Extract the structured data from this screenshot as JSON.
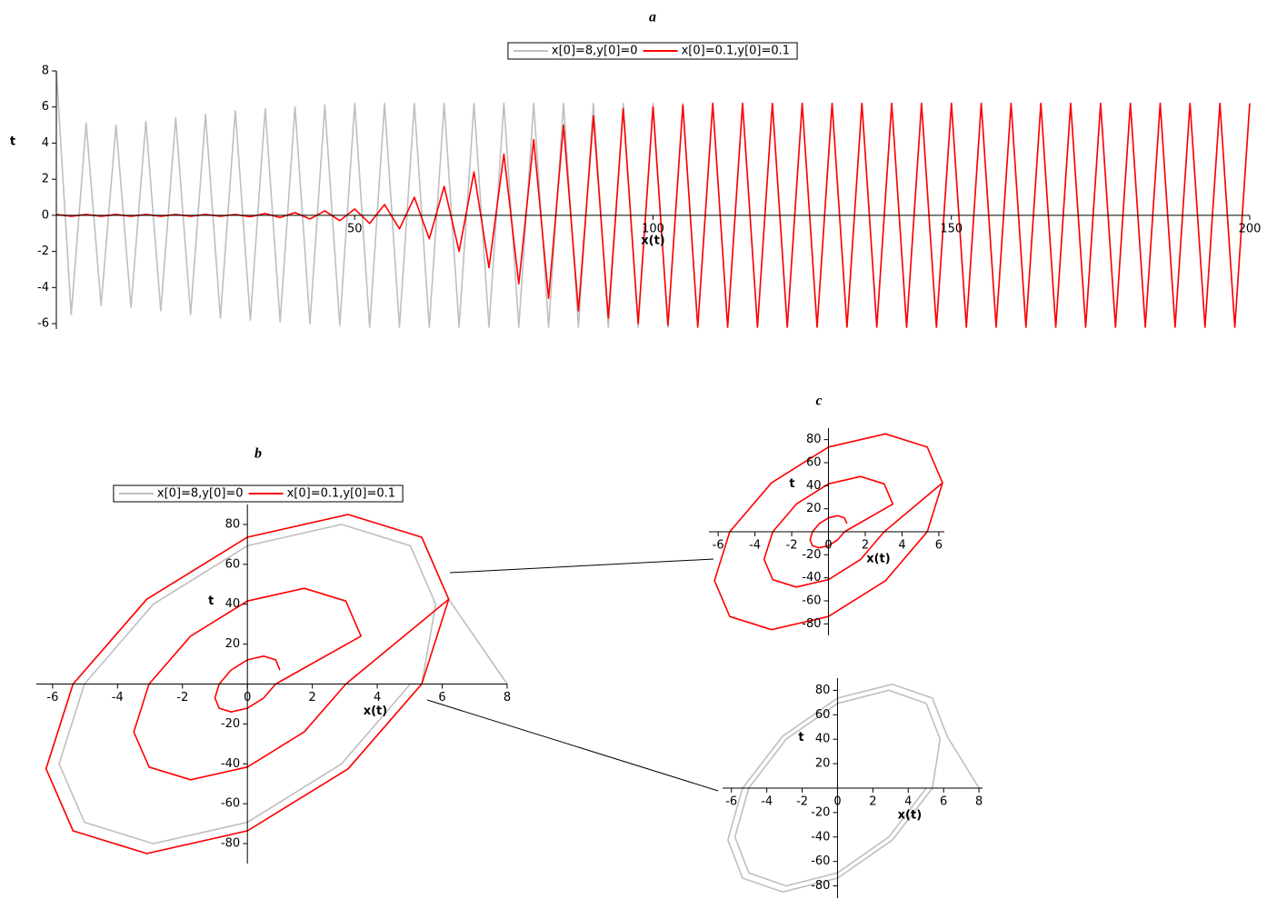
{
  "chart_data": [
    {
      "type": "line",
      "title": "a",
      "x_label": "x(t)",
      "y_label": "t",
      "legend": "top",
      "x": [
        0,
        2.5,
        5,
        7.5,
        10,
        12.5,
        15,
        17.5,
        20,
        22.5,
        25,
        27.5,
        30,
        32.5,
        35,
        37.5,
        40,
        42.5,
        45,
        47.5,
        50,
        52.5,
        55,
        57.5,
        60,
        62.5,
        65,
        67.5,
        70,
        72.5,
        75,
        77.5,
        80,
        82.5,
        85,
        87.5,
        90,
        92.5,
        95,
        97.5,
        100,
        102.5,
        105,
        107.5,
        110,
        112.5,
        115,
        117.5,
        120,
        122.5,
        125,
        127.5,
        130,
        132.5,
        135,
        137.5,
        140,
        142.5,
        145,
        147.5,
        150,
        152.5,
        155,
        157.5,
        160,
        162.5,
        165,
        167.5,
        170,
        172.5,
        175,
        177.5,
        180,
        182.5,
        185,
        187.5,
        190,
        192.5,
        195,
        197.5,
        200
      ],
      "series": [
        {
          "name": "x[0]=8,y[0]=0",
          "color": "#bfbfbf",
          "values": [
            8,
            -5.5,
            5.1,
            -5,
            5,
            -5.1,
            5.2,
            -5.3,
            5.4,
            -5.5,
            5.6,
            -5.7,
            5.8,
            -5.8,
            5.9,
            -5.9,
            6,
            -6,
            6.1,
            -6.1,
            6.2,
            -6.2,
            6.2,
            -6.2,
            6.2,
            -6.2,
            6.2,
            -6.2,
            6.2,
            -6.2,
            6.2,
            -6.2,
            6.2,
            -6.2,
            6.2,
            -6.2,
            6.2,
            -6.2,
            6.2,
            -6.2,
            6.2,
            -6.2,
            6.2,
            -6.2,
            6.2,
            -6.2,
            6.2,
            -6.2,
            6.2,
            -6.2,
            6.2,
            -6.2,
            6.2,
            -6.2,
            6.2,
            -6.2,
            6.2,
            -6.2,
            6.2,
            -6.2,
            6.2,
            -6.2,
            6.2,
            -6.2,
            6.2,
            -6.2,
            6.2,
            -6.2,
            6.2,
            -6.2,
            6.2,
            -6.2,
            6.2,
            -6.2,
            6.2,
            -6.2,
            6.2,
            -6.2,
            6.2,
            -6.2,
            6.2
          ]
        },
        {
          "name": "x[0]=0.1,y[0]=0.1",
          "color": "#ff0000",
          "values": [
            0.05,
            -0.05,
            0.05,
            -0.05,
            0.05,
            -0.05,
            0.05,
            -0.05,
            0.05,
            -0.05,
            0.05,
            -0.05,
            0.05,
            -0.08,
            0.1,
            -0.12,
            0.15,
            -0.2,
            0.25,
            -0.3,
            0.35,
            -0.45,
            0.6,
            -0.75,
            1,
            -1.3,
            1.6,
            -2,
            2.4,
            -2.9,
            3.4,
            -3.8,
            4.2,
            -4.6,
            5,
            -5.3,
            5.5,
            -5.7,
            5.9,
            -6,
            6,
            -6.1,
            6.1,
            -6.2,
            6.2,
            -6.2,
            6.2,
            -6.2,
            6.2,
            -6.2,
            6.2,
            -6.2,
            6.2,
            -6.2,
            6.2,
            -6.2,
            6.2,
            -6.2,
            6.2,
            -6.2,
            6.2,
            -6.2,
            6.2,
            -6.2,
            6.2,
            -6.2,
            6.2,
            -6.2,
            6.2,
            -6.2,
            6.2,
            -6.2,
            6.2,
            -6.2,
            6.2,
            -6.2,
            6.2,
            -6.2,
            6.2,
            -6.2,
            6.2
          ]
        }
      ],
      "xlim": [
        0,
        200
      ],
      "xticks": [
        50,
        100,
        150,
        200
      ],
      "ylim": [
        -6.3,
        8
      ],
      "yticks": [
        -6,
        -4,
        -2,
        0,
        2,
        4,
        6,
        8
      ]
    },
    {
      "type": "phase",
      "title": "b",
      "x_label": "x(t)",
      "y_label": "t",
      "legend": "top",
      "series": [
        {
          "name": "x[0]=8,y[0]=0",
          "color": "#bfbfbf",
          "x": [
            8,
            6.2,
            5.37,
            3.1,
            0,
            -3.1,
            -5.37,
            -6.2,
            -5.37,
            -3.1,
            0,
            3.1,
            5.37,
            5.8,
            5.02,
            2.9,
            0,
            -2.9,
            -5.02,
            -5.8,
            -5.02,
            -2.9,
            0,
            2.9,
            5.02
          ],
          "values": [
            0,
            42.5,
            73.6,
            85,
            73.6,
            42.5,
            0,
            -42.5,
            -73.6,
            -85,
            -73.6,
            -42.5,
            0,
            40,
            69.3,
            80,
            69.3,
            40,
            0,
            -40,
            -69.3,
            -80,
            -69.3,
            -40,
            0
          ]
        },
        {
          "name": "x[0]=0.1,y[0]=0.1",
          "color": "#ff0000",
          "x": [
            1,
            0.87,
            0.5,
            0,
            -0.5,
            -0.87,
            -1,
            -0.87,
            -0.5,
            0,
            0.5,
            0.87,
            3.5,
            3.03,
            1.75,
            0,
            -1.75,
            -3.03,
            -3.5,
            -3.03,
            -1.75,
            0,
            1.75,
            3.03,
            6.2,
            5.37,
            3.1,
            0,
            -3.1,
            -5.37,
            -6.2,
            -5.37,
            -3.1,
            0,
            3.1,
            5.37,
            6.2
          ],
          "values": [
            7,
            12.1,
            14,
            12.1,
            7,
            0,
            -7,
            -12.1,
            -14,
            -12.1,
            -7,
            0,
            24,
            41.6,
            48,
            41.6,
            24,
            0,
            -24,
            -41.6,
            -48,
            -41.6,
            -24,
            0,
            42.5,
            73.6,
            85,
            73.6,
            42.5,
            0,
            -42.5,
            -73.6,
            -85,
            -73.6,
            -42.5,
            0,
            42.5
          ]
        }
      ],
      "xlim": [
        -6.5,
        8
      ],
      "xticks": [
        -6,
        -4,
        -2,
        0,
        2,
        4,
        6,
        8
      ],
      "ylim": [
        -90,
        90
      ],
      "yticks": [
        -80,
        -60,
        -40,
        -20,
        20,
        40,
        60,
        80
      ]
    },
    {
      "type": "phase",
      "title": "c",
      "x_label": "x(t)",
      "y_label": "t",
      "series": [
        {
          "color": "#ff0000",
          "x": [
            1,
            0.87,
            0.5,
            0,
            -0.5,
            -0.87,
            -1,
            -0.87,
            -0.5,
            0,
            0.5,
            0.87,
            3.5,
            3.03,
            1.75,
            0,
            -1.75,
            -3.03,
            -3.5,
            -3.03,
            -1.75,
            0,
            1.75,
            3.03,
            6.2,
            5.37,
            3.1,
            0,
            -3.1,
            -5.37,
            -6.2,
            -5.37,
            -3.1,
            0,
            3.1,
            5.37,
            6.2
          ],
          "values": [
            7,
            12.1,
            14,
            12.1,
            7,
            0,
            -7,
            -12.1,
            -14,
            -12.1,
            -7,
            0,
            24,
            41.6,
            48,
            41.6,
            24,
            0,
            -24,
            -41.6,
            -48,
            -41.6,
            -24,
            0,
            42.5,
            73.6,
            85,
            73.6,
            42.5,
            0,
            -42.5,
            -73.6,
            -85,
            -73.6,
            -42.5,
            0,
            42.5
          ]
        }
      ],
      "xlim": [
        -6.5,
        6.3
      ],
      "xticks": [
        -6,
        -4,
        -2,
        0,
        2,
        4,
        6
      ],
      "ylim": [
        -90,
        90
      ],
      "yticks": [
        -80,
        -60,
        -40,
        -20,
        20,
        40,
        60,
        80
      ]
    },
    {
      "type": "phase",
      "x_label": "x(t)",
      "y_label": "t",
      "series": [
        {
          "color": "#bfbfbf",
          "x": [
            8,
            6.2,
            5.37,
            3.1,
            0,
            -3.1,
            -5.37,
            -6.2,
            -5.37,
            -3.1,
            0,
            3.1,
            5.37,
            5.8,
            5.02,
            2.9,
            0,
            -2.9,
            -5.02,
            -5.8,
            -5.02,
            -2.9,
            0,
            2.9,
            5.02
          ],
          "values": [
            0,
            42.5,
            73.6,
            85,
            73.6,
            42.5,
            0,
            -42.5,
            -73.6,
            -85,
            -73.6,
            -42.5,
            0,
            40,
            69.3,
            80,
            69.3,
            40,
            0,
            -40,
            -69.3,
            -80,
            -69.3,
            -40,
            0
          ]
        }
      ],
      "xlim": [
        -6.5,
        8.2
      ],
      "xticks": [
        -6,
        -4,
        -2,
        0,
        2,
        4,
        6,
        8
      ],
      "ylim": [
        -90,
        90
      ],
      "yticks": [
        -80,
        -60,
        -40,
        -20,
        20,
        40,
        60,
        80
      ]
    }
  ]
}
